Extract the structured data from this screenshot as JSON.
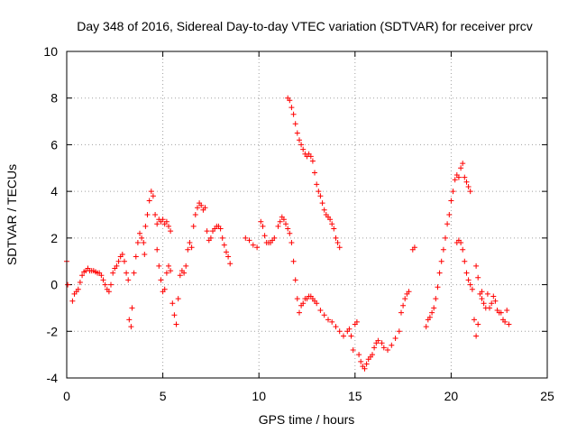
{
  "chart_data": {
    "type": "scatter",
    "title": "Day 348 of 2016, Sidereal Day-to-day VTEC variation (SDTVAR) for receiver prcv",
    "xlabel": "GPS time / hours",
    "ylabel": "SDTVAR / TECUs",
    "xlim": [
      0,
      25
    ],
    "ylim": [
      -4,
      10
    ],
    "xticks": [
      "0",
      "5",
      "10",
      "15",
      "20",
      "25"
    ],
    "yticks": [
      "-4",
      "-2",
      "0",
      "2",
      "4",
      "6",
      "8",
      "10"
    ],
    "grid": true,
    "marker": "plus",
    "series_color": "#ff0000",
    "series": [
      {
        "name": "SDTVAR",
        "points": [
          [
            0.0,
            1.0
          ],
          [
            0.05,
            0.0
          ],
          [
            0.3,
            -0.7
          ],
          [
            0.4,
            -0.4
          ],
          [
            0.5,
            -0.3
          ],
          [
            0.6,
            -0.2
          ],
          [
            0.7,
            0.1
          ],
          [
            0.8,
            0.4
          ],
          [
            0.9,
            0.55
          ],
          [
            1.0,
            0.6
          ],
          [
            1.1,
            0.7
          ],
          [
            1.2,
            0.6
          ],
          [
            1.3,
            0.6
          ],
          [
            1.4,
            0.6
          ],
          [
            1.5,
            0.55
          ],
          [
            1.6,
            0.5
          ],
          [
            1.7,
            0.5
          ],
          [
            1.8,
            0.4
          ],
          [
            1.9,
            0.2
          ],
          [
            2.0,
            0.0
          ],
          [
            2.1,
            -0.2
          ],
          [
            2.2,
            -0.3
          ],
          [
            2.3,
            0.0
          ],
          [
            2.4,
            0.5
          ],
          [
            2.5,
            0.7
          ],
          [
            2.6,
            0.8
          ],
          [
            2.7,
            1.0
          ],
          [
            2.8,
            1.2
          ],
          [
            2.9,
            1.3
          ],
          [
            3.0,
            1.0
          ],
          [
            3.1,
            0.5
          ],
          [
            3.2,
            0.2
          ],
          [
            3.25,
            -1.5
          ],
          [
            3.35,
            -1.8
          ],
          [
            3.4,
            -1.0
          ],
          [
            3.5,
            0.5
          ],
          [
            3.6,
            1.2
          ],
          [
            3.7,
            1.8
          ],
          [
            3.8,
            2.2
          ],
          [
            3.9,
            2.0
          ],
          [
            4.0,
            1.8
          ],
          [
            4.05,
            1.3
          ],
          [
            4.1,
            2.5
          ],
          [
            4.2,
            3.0
          ],
          [
            4.3,
            3.6
          ],
          [
            4.4,
            4.0
          ],
          [
            4.5,
            3.8
          ],
          [
            4.6,
            3.0
          ],
          [
            4.7,
            2.6
          ],
          [
            4.8,
            2.8
          ],
          [
            4.9,
            2.7
          ],
          [
            5.0,
            2.8
          ],
          [
            5.1,
            2.6
          ],
          [
            5.2,
            2.7
          ],
          [
            5.3,
            2.5
          ],
          [
            5.4,
            2.3
          ],
          [
            4.7,
            1.5
          ],
          [
            4.8,
            0.8
          ],
          [
            4.9,
            0.2
          ],
          [
            5.0,
            -0.3
          ],
          [
            5.1,
            -0.2
          ],
          [
            5.2,
            0.5
          ],
          [
            5.3,
            0.8
          ],
          [
            5.4,
            0.6
          ],
          [
            5.5,
            -0.8
          ],
          [
            5.6,
            -1.3
          ],
          [
            5.7,
            -1.7
          ],
          [
            5.8,
            -0.6
          ],
          [
            5.9,
            0.4
          ],
          [
            6.0,
            0.6
          ],
          [
            6.1,
            0.5
          ],
          [
            6.2,
            0.8
          ],
          [
            6.3,
            1.5
          ],
          [
            6.4,
            1.8
          ],
          [
            6.5,
            1.6
          ],
          [
            6.6,
            2.5
          ],
          [
            6.7,
            3.0
          ],
          [
            6.8,
            3.3
          ],
          [
            6.9,
            3.5
          ],
          [
            7.0,
            3.4
          ],
          [
            7.1,
            3.2
          ],
          [
            7.2,
            3.3
          ],
          [
            7.3,
            2.3
          ],
          [
            7.4,
            1.9
          ],
          [
            7.5,
            2.0
          ],
          [
            7.6,
            2.3
          ],
          [
            7.7,
            2.4
          ],
          [
            7.8,
            2.5
          ],
          [
            7.9,
            2.5
          ],
          [
            8.0,
            2.4
          ],
          [
            8.1,
            2.0
          ],
          [
            8.2,
            1.7
          ],
          [
            8.3,
            1.4
          ],
          [
            8.4,
            1.2
          ],
          [
            8.5,
            0.9
          ],
          [
            9.3,
            2.0
          ],
          [
            9.5,
            1.9
          ],
          [
            9.7,
            1.7
          ],
          [
            9.9,
            1.6
          ],
          [
            10.1,
            2.7
          ],
          [
            10.2,
            2.5
          ],
          [
            10.3,
            2.1
          ],
          [
            10.4,
            1.8
          ],
          [
            10.5,
            1.8
          ],
          [
            10.6,
            1.8
          ],
          [
            10.7,
            1.9
          ],
          [
            10.8,
            2.0
          ],
          [
            11.0,
            2.5
          ],
          [
            11.1,
            2.7
          ],
          [
            11.2,
            2.9
          ],
          [
            11.3,
            2.8
          ],
          [
            11.4,
            2.6
          ],
          [
            11.5,
            2.4
          ],
          [
            11.6,
            2.2
          ],
          [
            11.7,
            1.8
          ],
          [
            11.8,
            1.0
          ],
          [
            11.9,
            0.2
          ],
          [
            12.0,
            -0.6
          ],
          [
            12.1,
            -1.2
          ],
          [
            12.2,
            -0.9
          ],
          [
            12.3,
            -0.8
          ],
          [
            12.4,
            -0.6
          ],
          [
            12.5,
            -0.6
          ],
          [
            12.6,
            -0.5
          ],
          [
            12.7,
            -0.5
          ],
          [
            12.8,
            -0.6
          ],
          [
            12.9,
            -0.7
          ],
          [
            13.0,
            -0.8
          ],
          [
            13.2,
            -1.1
          ],
          [
            13.4,
            -1.3
          ],
          [
            13.6,
            -1.5
          ],
          [
            13.8,
            -1.6
          ],
          [
            14.0,
            -1.8
          ],
          [
            14.2,
            -2.0
          ],
          [
            14.4,
            -2.2
          ],
          [
            14.6,
            -2.0
          ],
          [
            14.7,
            -1.9
          ],
          [
            14.8,
            -2.2
          ],
          [
            14.9,
            -2.8
          ],
          [
            15.0,
            -1.7
          ],
          [
            15.1,
            -1.6
          ],
          [
            15.2,
            -3.0
          ],
          [
            15.3,
            -3.3
          ],
          [
            15.4,
            -3.5
          ],
          [
            15.5,
            -3.6
          ],
          [
            15.6,
            -3.4
          ],
          [
            15.7,
            -3.2
          ],
          [
            15.8,
            -3.1
          ],
          [
            15.9,
            -3.0
          ],
          [
            16.0,
            -2.7
          ],
          [
            16.1,
            -2.5
          ],
          [
            16.2,
            -2.4
          ],
          [
            16.4,
            -2.5
          ],
          [
            16.5,
            -2.7
          ],
          [
            16.7,
            -2.8
          ],
          [
            16.9,
            -2.6
          ],
          [
            17.1,
            -2.3
          ],
          [
            17.3,
            -2.0
          ],
          [
            17.4,
            -1.2
          ],
          [
            17.5,
            -0.9
          ],
          [
            17.6,
            -0.6
          ],
          [
            17.7,
            -0.4
          ],
          [
            17.8,
            -0.3
          ],
          [
            11.5,
            8.0
          ],
          [
            11.6,
            7.9
          ],
          [
            11.7,
            7.6
          ],
          [
            11.8,
            7.3
          ],
          [
            11.9,
            6.9
          ],
          [
            12.0,
            6.5
          ],
          [
            12.1,
            6.2
          ],
          [
            12.2,
            6.0
          ],
          [
            12.3,
            5.8
          ],
          [
            12.4,
            5.6
          ],
          [
            12.5,
            5.5
          ],
          [
            12.6,
            5.6
          ],
          [
            12.7,
            5.5
          ],
          [
            12.8,
            5.3
          ],
          [
            12.9,
            4.8
          ],
          [
            13.0,
            4.3
          ],
          [
            13.1,
            4.0
          ],
          [
            13.2,
            3.8
          ],
          [
            13.3,
            3.5
          ],
          [
            13.4,
            3.2
          ],
          [
            13.5,
            3.0
          ],
          [
            13.6,
            2.9
          ],
          [
            13.7,
            2.8
          ],
          [
            13.8,
            2.6
          ],
          [
            13.9,
            2.4
          ],
          [
            14.0,
            2.0
          ],
          [
            14.1,
            1.8
          ],
          [
            14.2,
            1.6
          ],
          [
            18.0,
            1.5
          ],
          [
            18.1,
            1.6
          ],
          [
            18.7,
            -1.8
          ],
          [
            18.8,
            -1.5
          ],
          [
            18.9,
            -1.4
          ],
          [
            19.0,
            -1.2
          ],
          [
            19.1,
            -1.0
          ],
          [
            19.2,
            -0.6
          ],
          [
            19.3,
            -0.1
          ],
          [
            19.4,
            0.5
          ],
          [
            19.5,
            1.0
          ],
          [
            19.6,
            1.5
          ],
          [
            19.7,
            2.0
          ],
          [
            19.8,
            2.6
          ],
          [
            19.9,
            3.0
          ],
          [
            20.0,
            3.6
          ],
          [
            20.1,
            4.0
          ],
          [
            20.2,
            4.5
          ],
          [
            20.3,
            4.7
          ],
          [
            20.4,
            4.6
          ],
          [
            20.5,
            5.0
          ],
          [
            20.6,
            5.2
          ],
          [
            20.7,
            4.6
          ],
          [
            20.8,
            4.4
          ],
          [
            20.9,
            4.2
          ],
          [
            21.0,
            4.0
          ],
          [
            20.3,
            1.8
          ],
          [
            20.4,
            1.9
          ],
          [
            20.5,
            1.8
          ],
          [
            20.6,
            1.5
          ],
          [
            20.7,
            1.0
          ],
          [
            20.8,
            0.5
          ],
          [
            20.9,
            0.2
          ],
          [
            21.0,
            0.0
          ],
          [
            21.1,
            -0.2
          ],
          [
            21.2,
            -1.5
          ],
          [
            21.3,
            -2.2
          ],
          [
            21.4,
            -1.7
          ],
          [
            21.5,
            -0.4
          ],
          [
            21.6,
            -0.6
          ],
          [
            21.7,
            -0.8
          ],
          [
            21.8,
            -1.0
          ],
          [
            21.9,
            -0.4
          ],
          [
            22.0,
            -1.0
          ],
          [
            22.1,
            -0.8
          ],
          [
            22.2,
            -0.5
          ],
          [
            22.3,
            -0.7
          ],
          [
            22.4,
            -1.1
          ],
          [
            22.5,
            -1.2
          ],
          [
            22.6,
            -1.2
          ],
          [
            22.7,
            -1.5
          ],
          [
            22.8,
            -1.6
          ],
          [
            22.9,
            -1.1
          ],
          [
            23.0,
            -1.7
          ],
          [
            21.3,
            0.8
          ],
          [
            21.4,
            0.3
          ],
          [
            21.6,
            -0.3
          ]
        ]
      }
    ]
  }
}
